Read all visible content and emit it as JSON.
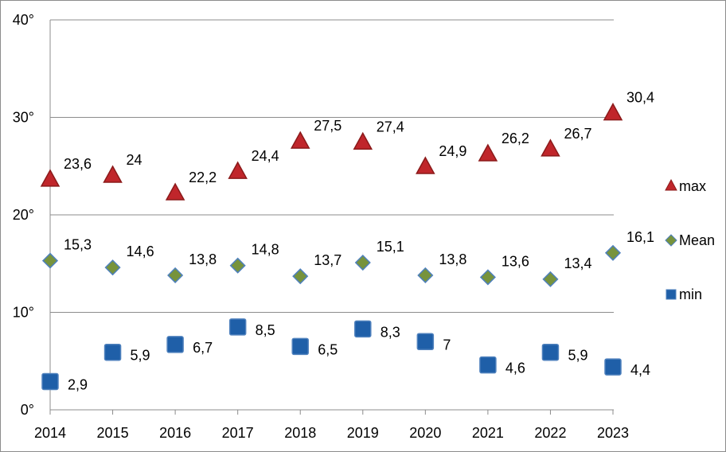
{
  "chart_data": {
    "type": "scatter",
    "categories": [
      "2014",
      "2015",
      "2016",
      "2017",
      "2018",
      "2019",
      "2020",
      "2021",
      "2022",
      "2023"
    ],
    "ylim": [
      0,
      40
    ],
    "yticks": [
      0,
      10,
      20,
      30,
      40
    ],
    "ytick_labels": [
      "0°",
      "10°",
      "20°",
      "30°",
      "40°"
    ],
    "grid": true,
    "legend_position": "right",
    "series": [
      {
        "name": "max",
        "marker": "triangle",
        "color": "#c0262b",
        "edge_color": "#8b1a1a",
        "values": [
          23.6,
          24,
          22.2,
          24.4,
          27.5,
          27.4,
          24.9,
          26.2,
          26.7,
          30.4
        ],
        "labels": [
          "23,6",
          "24",
          "22,2",
          "24,4",
          "27,5",
          "27,4",
          "24,9",
          "26,2",
          "26,7",
          "30,4"
        ]
      },
      {
        "name": "Mean",
        "marker": "diamond",
        "color": "#77933c",
        "edge_color": "#4f81bd",
        "values": [
          15.3,
          14.6,
          13.8,
          14.8,
          13.7,
          15.1,
          13.8,
          13.6,
          13.4,
          16.1
        ],
        "labels": [
          "15,3",
          "14,6",
          "13,8",
          "14,8",
          "13,7",
          "15,1",
          "13,8",
          "13,6",
          "13,4",
          "16,1"
        ]
      },
      {
        "name": "min",
        "marker": "square",
        "color": "#1f5fa8",
        "edge_color": "#4f81bd",
        "values": [
          2.9,
          5.9,
          6.7,
          8.5,
          6.5,
          8.3,
          7,
          4.6,
          5.9,
          4.4
        ],
        "labels": [
          "2,9",
          "5,9",
          "6,7",
          "8,5",
          "6,5",
          "8,3",
          "7",
          "4,6",
          "5,9",
          "4,4"
        ]
      }
    ]
  }
}
